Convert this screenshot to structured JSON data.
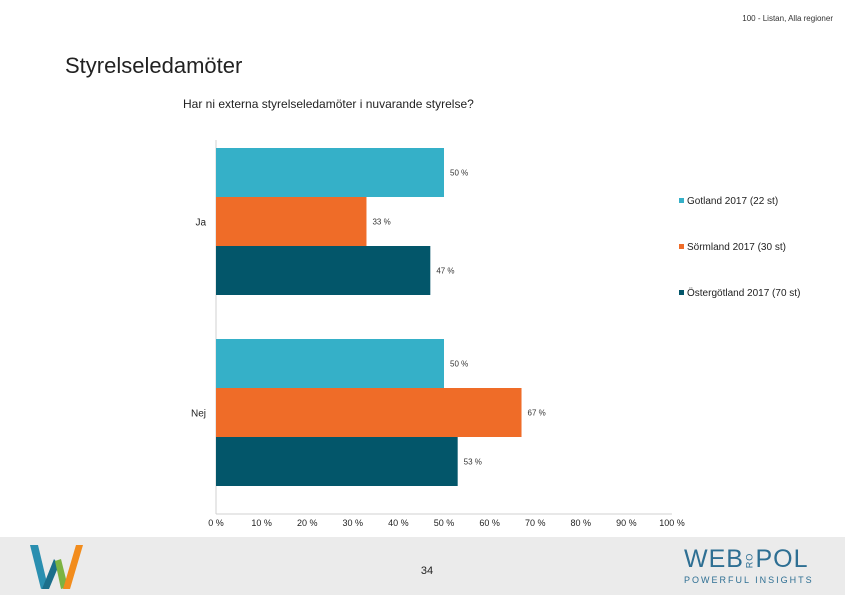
{
  "header": {
    "top_right": "100 - Listan, Alla regioner",
    "page_title": "Styrelseledamöter"
  },
  "chart_data": {
    "type": "bar",
    "orientation": "horizontal",
    "title": "Har ni externa styrelseledamöter i nuvarande styrelse?",
    "categories": [
      "Ja",
      "Nej"
    ],
    "series": [
      {
        "name": "Gotland 2017 (22 st)",
        "color": "#35b0c8",
        "values": [
          50,
          50
        ],
        "labels": [
          "50 %",
          "50 %"
        ]
      },
      {
        "name": "Sörmland 2017 (30 st)",
        "color": "#ef6c28",
        "values": [
          33,
          67
        ],
        "labels": [
          "33 %",
          "67 %"
        ]
      },
      {
        "name": "Östergötland 2017 (70 st)",
        "color": "#03566a",
        "values": [
          47,
          53
        ],
        "labels": [
          "47 %",
          "53 %"
        ]
      }
    ],
    "xlim": [
      0,
      100
    ],
    "x_tick_labels": [
      "0 %",
      "10 %",
      "20 %",
      "30 %",
      "40 %",
      "50 %",
      "60 %",
      "70 %",
      "80 %",
      "90 %",
      "100 %"
    ],
    "legend_position": "right",
    "grid": false
  },
  "footer": {
    "page_number": "34",
    "brand_name": "WEB",
    "brand_ro": "RO",
    "brand_name_end": "POL",
    "brand_tagline": "POWERFUL INSIGHTS",
    "logo_icon": "w-logo-icon"
  }
}
